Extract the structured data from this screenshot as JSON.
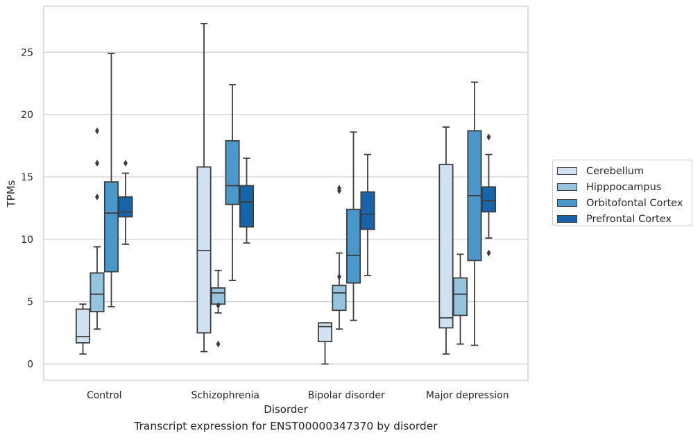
{
  "chart_data": {
    "type": "box",
    "caption": "Transcript expression for ENST00000347370 by disorder",
    "xlabel": "Disorder",
    "ylabel": "TPMs",
    "ylim": [
      -1.3,
      28.6
    ],
    "yticks": [
      0,
      5,
      10,
      15,
      20,
      25
    ],
    "grid": true,
    "legend_position": "right",
    "categories": [
      "Control",
      "Schizophrenia",
      "Bipolar disorder",
      "Major depression"
    ],
    "series": [
      {
        "name": "Cerebellum",
        "color": "#d0e1f2",
        "boxes": [
          {
            "whislo": 0.8,
            "q1": 1.7,
            "med": 2.2,
            "q3": 4.4,
            "whishi": 4.8,
            "fliers": []
          },
          {
            "whislo": 1.0,
            "q1": 2.5,
            "med": 9.1,
            "q3": 15.8,
            "whishi": 27.3,
            "fliers": []
          },
          {
            "whislo": 0.0,
            "q1": 1.8,
            "med": 3.0,
            "q3": 3.3,
            "whishi": 3.3,
            "fliers": []
          },
          {
            "whislo": 0.8,
            "q1": 2.9,
            "med": 3.7,
            "q3": 16.0,
            "whishi": 19.0,
            "fliers": []
          }
        ]
      },
      {
        "name": "Hipppocampus",
        "color": "#94c4df",
        "boxes": [
          {
            "whislo": 2.8,
            "q1": 4.2,
            "med": 5.6,
            "q3": 7.3,
            "whishi": 9.4,
            "fliers": [
              18.7,
              16.1,
              13.4
            ]
          },
          {
            "whislo": 4.1,
            "q1": 4.8,
            "med": 5.7,
            "q3": 6.1,
            "whishi": 7.5,
            "fliers": [
              4.7,
              1.6
            ]
          },
          {
            "whislo": 2.8,
            "q1": 4.3,
            "med": 5.7,
            "q3": 6.3,
            "whishi": 8.9,
            "fliers": [
              14.1,
              13.9,
              7.0
            ]
          },
          {
            "whislo": 1.6,
            "q1": 3.9,
            "med": 5.6,
            "q3": 6.9,
            "whishi": 8.8,
            "fliers": []
          }
        ]
      },
      {
        "name": "Orbitofontal Cortex",
        "color": "#4a98c9",
        "boxes": [
          {
            "whislo": 4.6,
            "q1": 7.4,
            "med": 12.1,
            "q3": 14.6,
            "whishi": 24.9,
            "fliers": []
          },
          {
            "whislo": 6.7,
            "q1": 12.8,
            "med": 14.3,
            "q3": 17.9,
            "whishi": 22.4,
            "fliers": []
          },
          {
            "whislo": 3.5,
            "q1": 6.5,
            "med": 8.7,
            "q3": 12.4,
            "whishi": 18.6,
            "fliers": []
          },
          {
            "whislo": 1.5,
            "q1": 8.3,
            "med": 13.5,
            "q3": 18.7,
            "whishi": 22.6,
            "fliers": []
          }
        ]
      },
      {
        "name": "Prefrontal Cortex",
        "color": "#1764ab",
        "boxes": [
          {
            "whislo": 9.6,
            "q1": 11.8,
            "med": 12.2,
            "q3": 13.4,
            "whishi": 15.3,
            "fliers": [
              16.1
            ]
          },
          {
            "whislo": 9.7,
            "q1": 11.0,
            "med": 13.0,
            "q3": 14.3,
            "whishi": 16.5,
            "fliers": []
          },
          {
            "whislo": 7.1,
            "q1": 10.8,
            "med": 12.0,
            "q3": 13.8,
            "whishi": 16.8,
            "fliers": []
          },
          {
            "whislo": 10.1,
            "q1": 12.2,
            "med": 13.1,
            "q3": 14.2,
            "whishi": 16.8,
            "fliers": [
              18.2,
              8.9
            ]
          }
        ]
      }
    ]
  }
}
